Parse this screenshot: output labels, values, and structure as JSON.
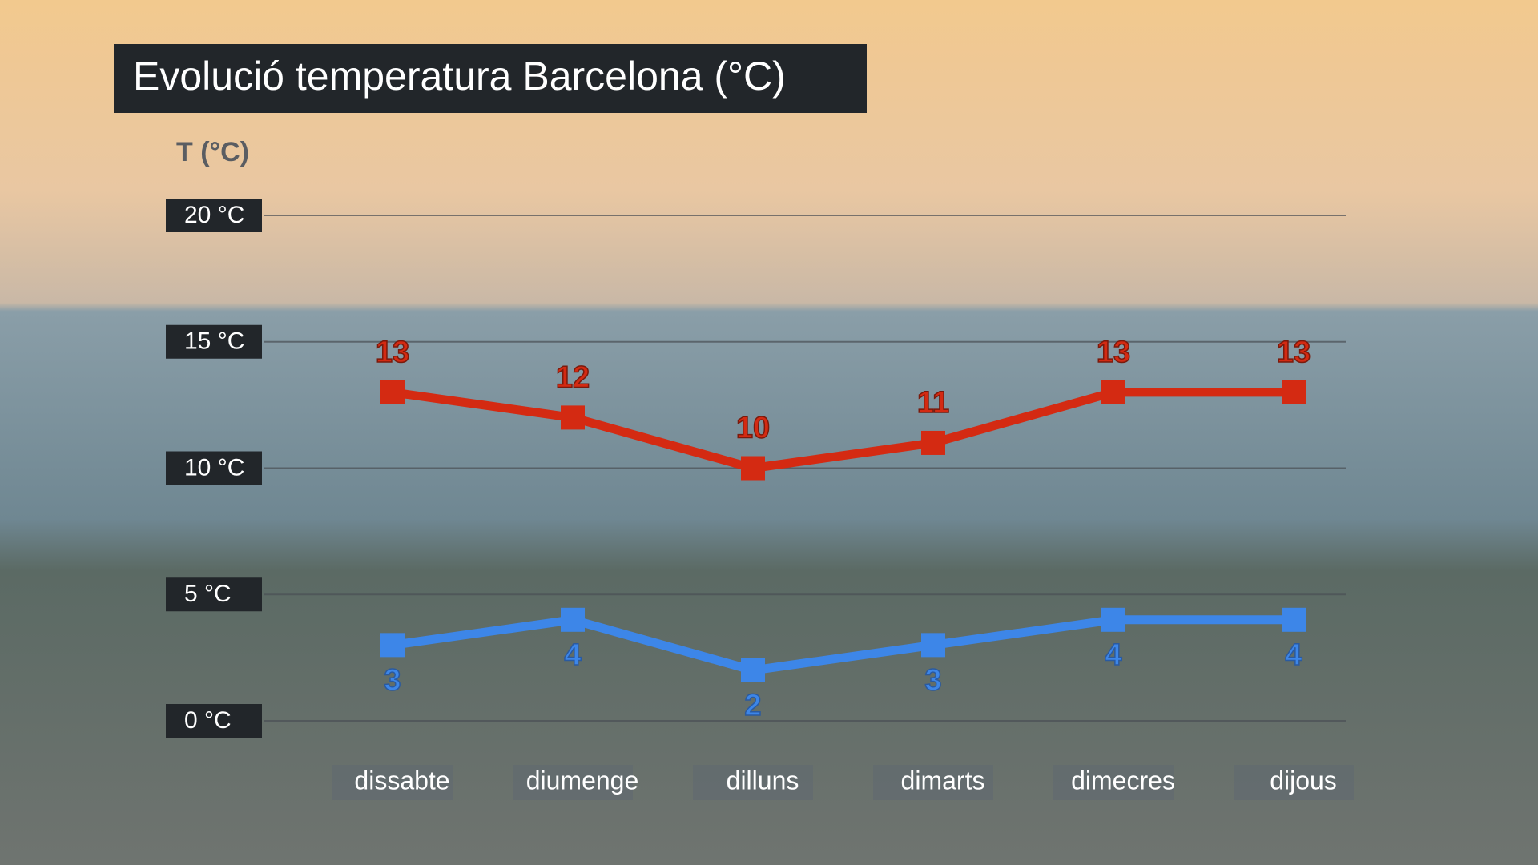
{
  "chart_data": {
    "type": "line",
    "title": "Evolució temperatura Barcelona (°C)",
    "y_label": "T (°C)",
    "categories": [
      "dissabte",
      "diumenge",
      "dilluns",
      "dimarts",
      "dimecres",
      "dijous"
    ],
    "series": [
      {
        "color": "#d42a12",
        "values": [
          13,
          12,
          10,
          11,
          13,
          13
        ]
      },
      {
        "color": "#3d86e8",
        "values": [
          3,
          4,
          2,
          3,
          4,
          4
        ]
      }
    ],
    "ylim": [
      0,
      20
    ],
    "yticks": [
      {
        "value": 0,
        "label": "0 °C"
      },
      {
        "value": 5,
        "label": "5 °C"
      },
      {
        "value": 10,
        "label": "10 °C"
      },
      {
        "value": 15,
        "label": "15 °C"
      },
      {
        "value": 20,
        "label": "20 °C"
      }
    ],
    "grid": true
  }
}
